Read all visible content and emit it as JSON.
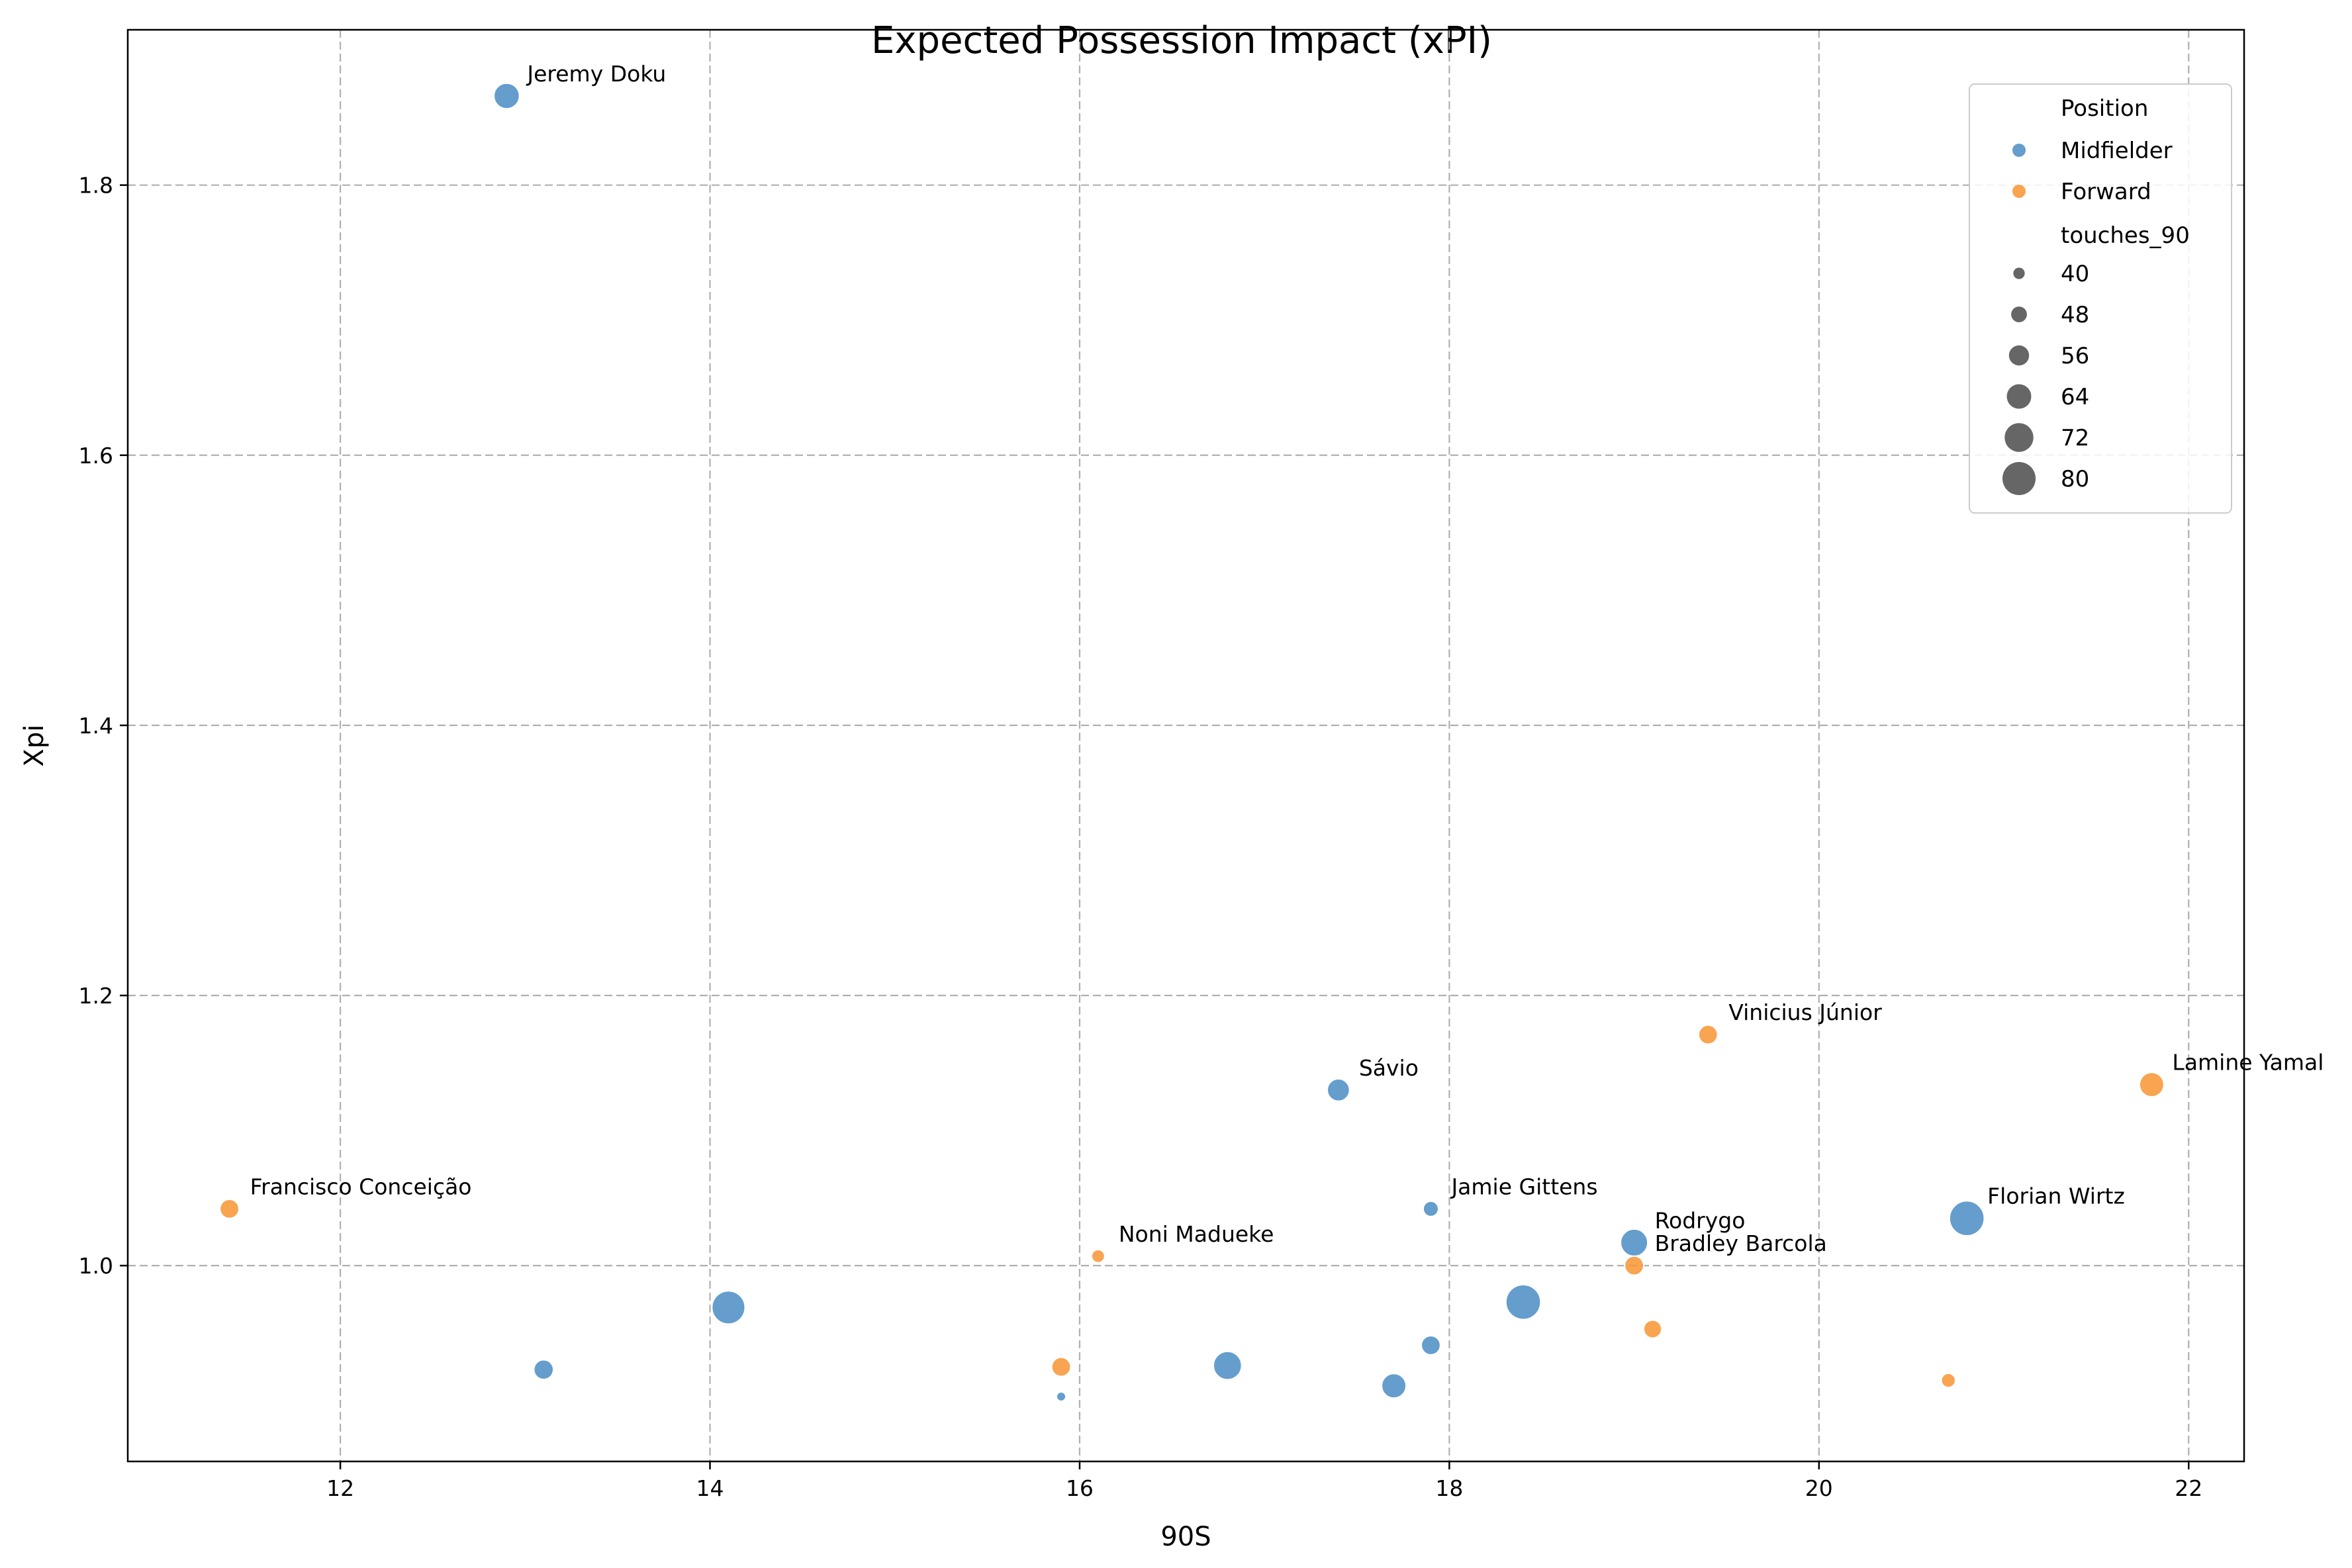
{
  "chart_data": {
    "type": "scatter",
    "title": "Expected Possession Impact (xPI)",
    "xlabel": "90S",
    "ylabel": "Xpi",
    "xlim": [
      10.85,
      22.3
    ],
    "ylim": [
      0.855,
      1.915
    ],
    "xticks": [
      12,
      14,
      16,
      18,
      20,
      22
    ],
    "yticks": [
      1.0,
      1.2,
      1.4,
      1.6,
      1.8
    ],
    "xtick_labels": [
      "12",
      "14",
      "16",
      "18",
      "20",
      "22"
    ],
    "ytick_labels": [
      "1.0",
      "1.2",
      "1.4",
      "1.6",
      "1.8"
    ],
    "grid": true,
    "legend_position": "top-right",
    "hue_title": "Position",
    "size_title": "touches_90",
    "series": [
      {
        "name": "Midfielder",
        "color": "#4a8cc4"
      },
      {
        "name": "Forward",
        "color": "#f79433"
      }
    ],
    "size_legend": [
      40,
      48,
      56,
      64,
      72,
      80
    ],
    "points": [
      {
        "x": 12.9,
        "y": 1.866,
        "position": "Midfielder",
        "touches_90": 66,
        "label": "Jeremy Doku"
      },
      {
        "x": 17.4,
        "y": 1.13,
        "position": "Midfielder",
        "touches_90": 60,
        "label": "Sávio"
      },
      {
        "x": 17.9,
        "y": 1.042,
        "position": "Midfielder",
        "touches_90": 47,
        "label": "Jamie Gittens"
      },
      {
        "x": 19.0,
        "y": 1.017,
        "position": "Midfielder",
        "touches_90": 69,
        "label": "Rodrygo"
      },
      {
        "x": 20.8,
        "y": 1.035,
        "position": "Midfielder",
        "touches_90": 83,
        "label": "Florian Wirtz"
      },
      {
        "x": 14.1,
        "y": 0.969,
        "position": "Midfielder",
        "touches_90": 80,
        "label": ""
      },
      {
        "x": 13.1,
        "y": 0.923,
        "position": "Midfielder",
        "touches_90": 55,
        "label": ""
      },
      {
        "x": 15.9,
        "y": 0.903,
        "position": "Midfielder",
        "touches_90": 36,
        "label": ""
      },
      {
        "x": 16.8,
        "y": 0.926,
        "position": "Midfielder",
        "touches_90": 71,
        "label": ""
      },
      {
        "x": 17.7,
        "y": 0.911,
        "position": "Midfielder",
        "touches_90": 64,
        "label": ""
      },
      {
        "x": 17.9,
        "y": 0.941,
        "position": "Midfielder",
        "touches_90": 54,
        "label": ""
      },
      {
        "x": 18.4,
        "y": 0.973,
        "position": "Midfielder",
        "touches_90": 83,
        "label": ""
      },
      {
        "x": 19.4,
        "y": 1.171,
        "position": "Forward",
        "touches_90": 54,
        "label": "Vinicius Júnior"
      },
      {
        "x": 21.8,
        "y": 1.134,
        "position": "Forward",
        "touches_90": 64,
        "label": "Lamine Yamal"
      },
      {
        "x": 11.4,
        "y": 1.042,
        "position": "Forward",
        "touches_90": 54,
        "label": "Francisco Conceição"
      },
      {
        "x": 16.1,
        "y": 1.007,
        "position": "Forward",
        "touches_90": 43,
        "label": "Noni Madueke"
      },
      {
        "x": 19.0,
        "y": 1.0,
        "position": "Forward",
        "touches_90": 54,
        "label": "Bradley Barcola"
      },
      {
        "x": 15.9,
        "y": 0.925,
        "position": "Forward",
        "touches_90": 54,
        "label": ""
      },
      {
        "x": 19.1,
        "y": 0.953,
        "position": "Forward",
        "touches_90": 52,
        "label": ""
      },
      {
        "x": 20.7,
        "y": 0.915,
        "position": "Forward",
        "touches_90": 45,
        "label": ""
      }
    ]
  }
}
